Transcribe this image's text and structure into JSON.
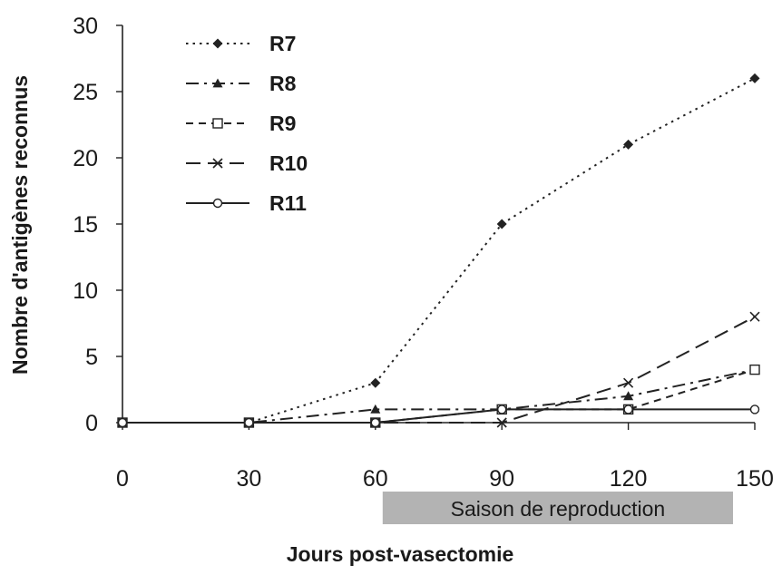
{
  "chart_data": {
    "type": "line",
    "title": "",
    "xlabel": "Jours post-vasectomie",
    "ylabel": "Nombre d'antigènes reconnus",
    "x": [
      0,
      30,
      60,
      90,
      120,
      150
    ],
    "xticks": [
      "0",
      "30",
      "60",
      "90",
      "120",
      "150"
    ],
    "yticks": [
      "0",
      "5",
      "10",
      "15",
      "20",
      "25",
      "30"
    ],
    "xlim": [
      0,
      150
    ],
    "ylim": [
      0,
      30
    ],
    "grid": false,
    "legend_position": "top-left",
    "series": [
      {
        "name": "R7",
        "values": [
          0,
          0,
          3,
          15,
          21,
          26
        ],
        "marker": "diamond",
        "dash": "dotted",
        "color": "#222222"
      },
      {
        "name": "R8",
        "values": [
          0,
          0,
          1,
          1,
          2,
          4
        ],
        "marker": "triangle",
        "dash": "dashdot",
        "color": "#222222"
      },
      {
        "name": "R9",
        "values": [
          0,
          0,
          0,
          1,
          1,
          4
        ],
        "marker": "square",
        "dash": "dashed",
        "color": "#222222"
      },
      {
        "name": "R10",
        "values": [
          0,
          0,
          0,
          0,
          3,
          8
        ],
        "marker": "x",
        "dash": "longdash",
        "color": "#222222"
      },
      {
        "name": "R11",
        "values": [
          0,
          0,
          0,
          1,
          1,
          1
        ],
        "marker": "circle",
        "dash": "solid",
        "color": "#222222"
      }
    ],
    "annotations": [
      {
        "text": "Saison de reproduction",
        "x_start": 60,
        "x_end": 150,
        "band_color": "#b3b3b3"
      }
    ]
  }
}
